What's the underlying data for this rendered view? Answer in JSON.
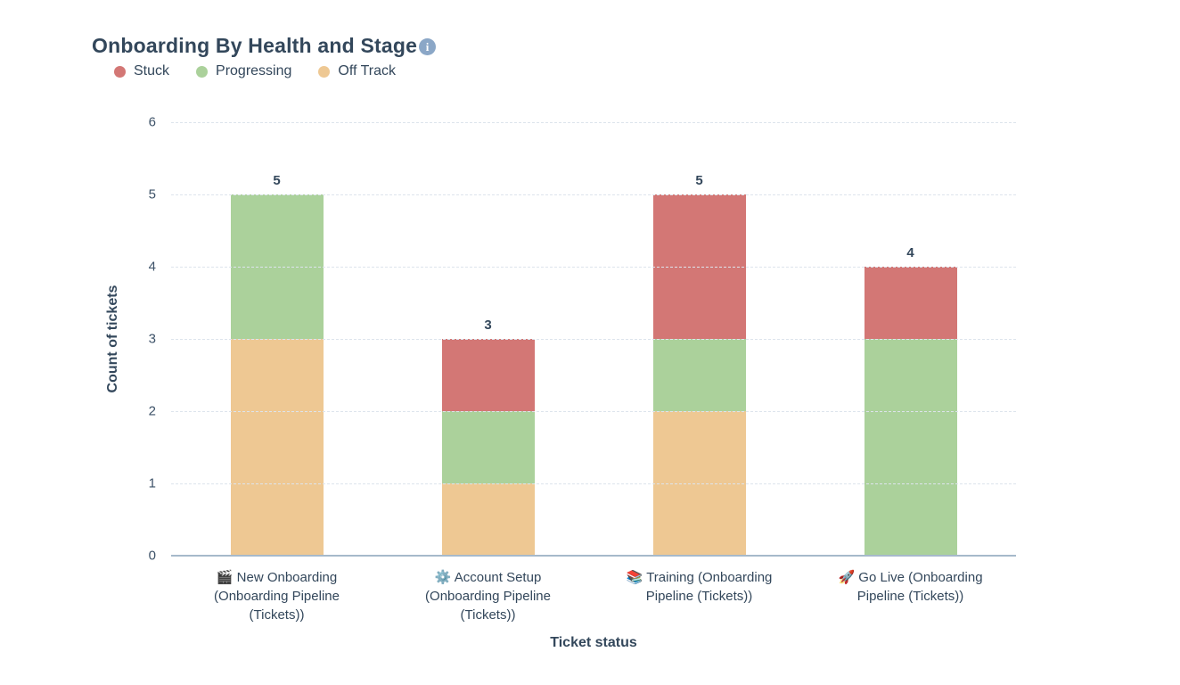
{
  "header": {
    "title": "Onboarding By Health and Stage",
    "info_icon_glyph": "i"
  },
  "colors": {
    "stuck": "#d37775",
    "progressing": "#abd19b",
    "off_track": "#eec893",
    "text": "#33475b",
    "axis_line": "#a6b9cb",
    "gridline": "#dde4ec",
    "info_icon_bg": "#8ba7c7"
  },
  "chart_data": {
    "type": "bar",
    "stacked": true,
    "title": "Onboarding By Health and Stage",
    "xlabel": "Ticket status",
    "ylabel": "Count of tickets",
    "ylim": [
      0,
      6
    ],
    "yticks": [
      0,
      1,
      2,
      3,
      4,
      5,
      6
    ],
    "grid": true,
    "legend_position": "top-left",
    "categories": [
      {
        "icon": "🎬",
        "icon_name": "clapper-board-icon",
        "label": "New Onboarding (Onboarding Pipeline (Tickets))"
      },
      {
        "icon": "⚙️",
        "icon_name": "gear-icon",
        "label": "Account Setup (Onboarding Pipeline (Tickets))"
      },
      {
        "icon": "📚",
        "icon_name": "books-icon",
        "label": "Training (Onboarding Pipeline (Tickets))"
      },
      {
        "icon": "🚀",
        "icon_name": "rocket-icon",
        "label": "Go Live (Onboarding Pipeline (Tickets))"
      }
    ],
    "stack_order_bottom_to_top": [
      "Off Track",
      "Progressing",
      "Stuck"
    ],
    "series": [
      {
        "name": "Stuck",
        "color": "#d37775",
        "values": [
          0,
          1,
          2,
          1
        ]
      },
      {
        "name": "Progressing",
        "color": "#abd19b",
        "values": [
          2,
          1,
          1,
          3
        ]
      },
      {
        "name": "Off Track",
        "color": "#eec893",
        "values": [
          3,
          1,
          2,
          0
        ]
      }
    ],
    "totals": [
      5,
      3,
      5,
      4
    ]
  }
}
